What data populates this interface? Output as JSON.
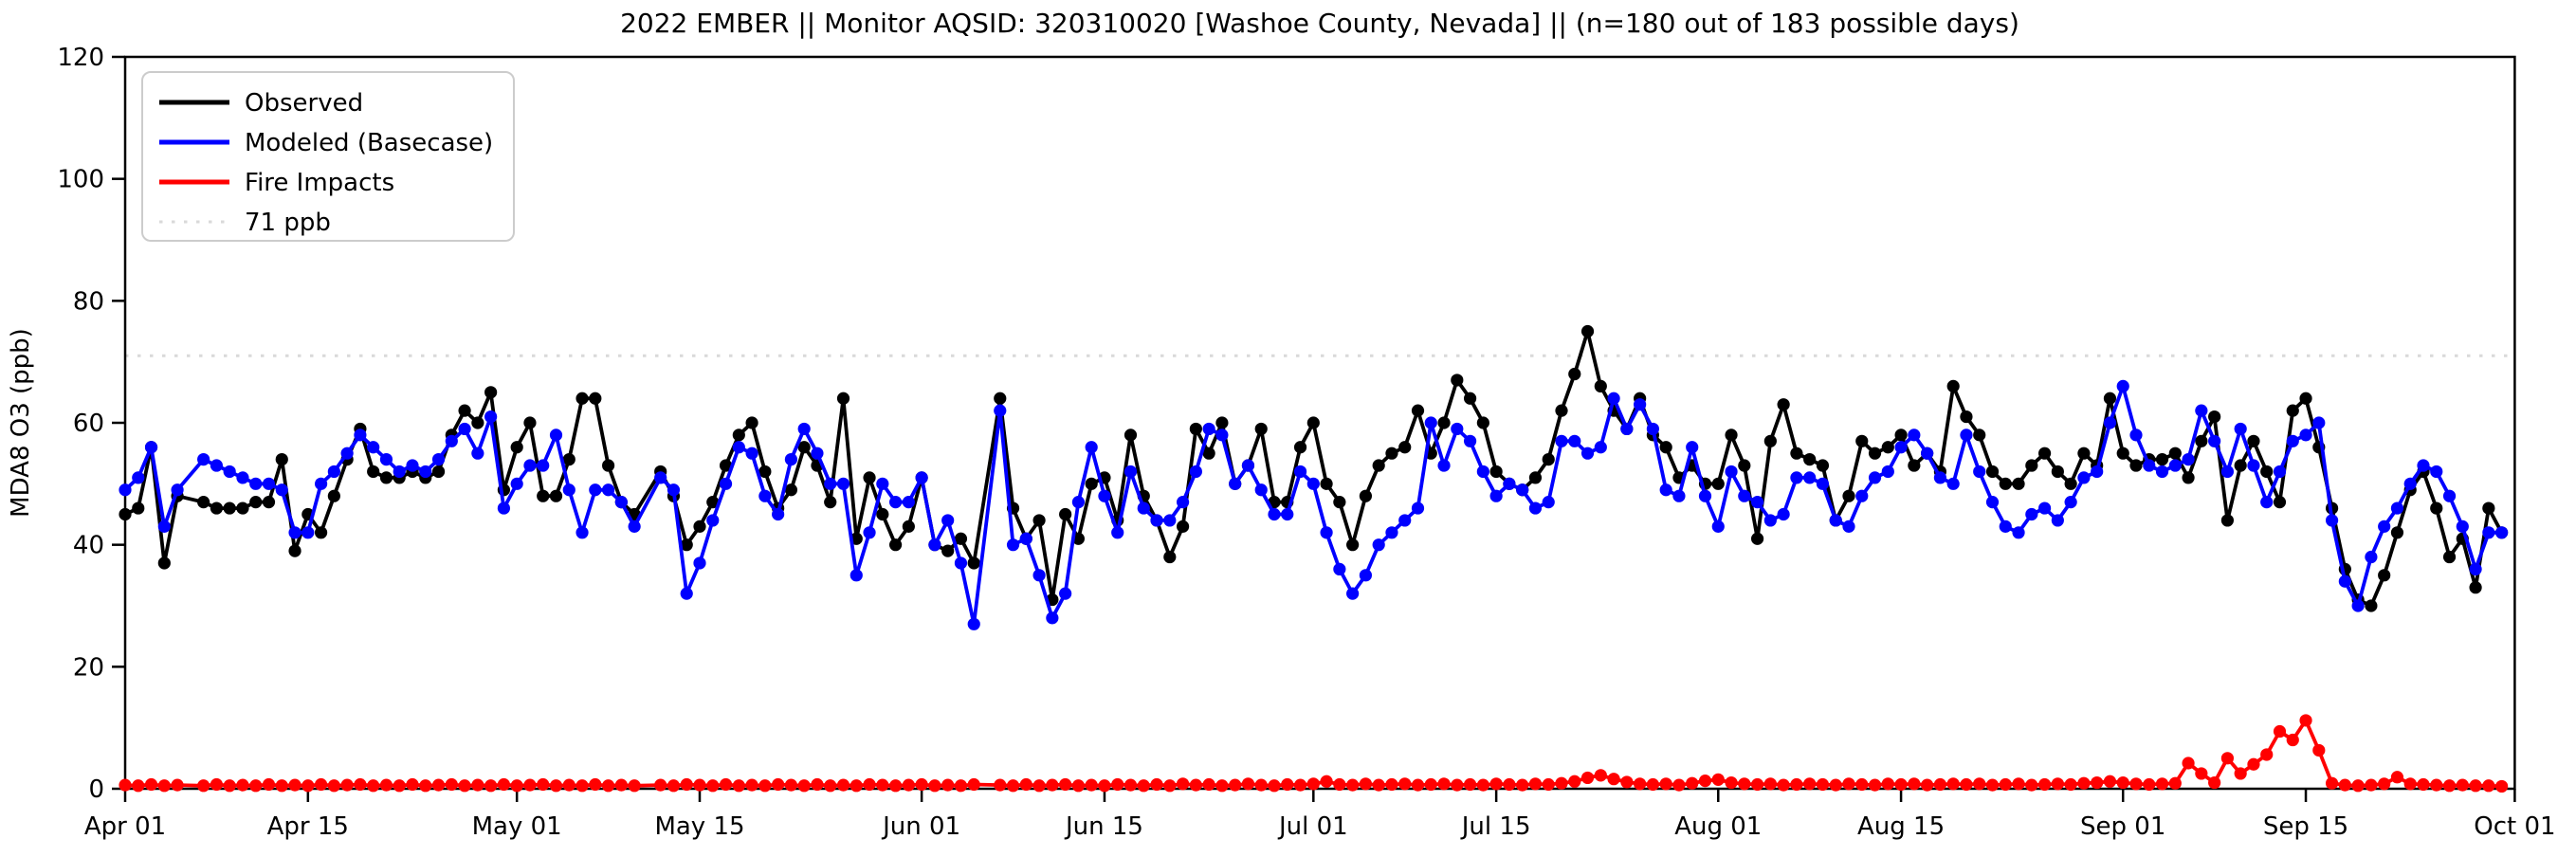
{
  "chart_data": {
    "type": "line",
    "title": "2022 EMBER || Monitor AQSID: 320310020 [Washoe County, Nevada] || (n=180 out of 183 possible days)",
    "xlabel": "",
    "ylabel": "MDA8 O3 (ppb)",
    "ylim": [
      0,
      120
    ],
    "yticks": [
      0,
      20,
      40,
      60,
      80,
      100,
      120
    ],
    "x_start": "Apr 01",
    "x_end": "Oct 01",
    "x_frequency": "daily",
    "n_days": 183,
    "n_observed_days": 180,
    "grid": "off",
    "legend_position": "upper-left",
    "xticks": [
      {
        "label": "Apr 01",
        "day": 0
      },
      {
        "label": "Apr 15",
        "day": 14
      },
      {
        "label": "May 01",
        "day": 30
      },
      {
        "label": "May 15",
        "day": 44
      },
      {
        "label": "Jun 01",
        "day": 61
      },
      {
        "label": "Jun 15",
        "day": 75
      },
      {
        "label": "Jul 01",
        "day": 91
      },
      {
        "label": "Jul 15",
        "day": 105
      },
      {
        "label": "Aug 01",
        "day": 122
      },
      {
        "label": "Aug 15",
        "day": 136
      },
      {
        "label": "Sep 01",
        "day": 153
      },
      {
        "label": "Sep 15",
        "day": 167
      },
      {
        "label": "Oct 01",
        "day": 183
      }
    ],
    "threshold": {
      "value": 71,
      "label": "71 ppb",
      "color": "#d9d9d9",
      "style": "dotted"
    },
    "series": [
      {
        "name": "Observed",
        "color": "#000000",
        "marker": "circle",
        "values": [
          45,
          46,
          56,
          37,
          48,
          null,
          47,
          46,
          46,
          46,
          47,
          47,
          54,
          39,
          45,
          42,
          48,
          54,
          59,
          52,
          51,
          51,
          52,
          51,
          52,
          58,
          62,
          60,
          65,
          49,
          56,
          60,
          48,
          48,
          54,
          64,
          64,
          53,
          47,
          45,
          null,
          52,
          48,
          40,
          43,
          47,
          53,
          58,
          60,
          52,
          46,
          49,
          56,
          53,
          47,
          64,
          41,
          51,
          45,
          40,
          43,
          51,
          40,
          39,
          41,
          37,
          null,
          64,
          46,
          41,
          44,
          31,
          45,
          41,
          50,
          51,
          44,
          58,
          48,
          44,
          38,
          43,
          59,
          55,
          60,
          50,
          53,
          59,
          47,
          47,
          56,
          60,
          50,
          47,
          40,
          48,
          53,
          55,
          56,
          62,
          55,
          60,
          67,
          64,
          60,
          52,
          50,
          49,
          51,
          54,
          62,
          68,
          75,
          66,
          62,
          59,
          64,
          58,
          56,
          51,
          53,
          50,
          50,
          58,
          53,
          41,
          57,
          63,
          55,
          54,
          53,
          44,
          48,
          57,
          55,
          56,
          58,
          53,
          55,
          52,
          66,
          61,
          58,
          52,
          50,
          50,
          53,
          55,
          52,
          50,
          55,
          53,
          64,
          55,
          53,
          54,
          54,
          55,
          51,
          57,
          61,
          44,
          53,
          57,
          52,
          47,
          62,
          64,
          56,
          46,
          36,
          31,
          30,
          35,
          42,
          49,
          52,
          46,
          38,
          41,
          33,
          46,
          42
        ]
      },
      {
        "name": "Modeled (Basecase)",
        "color": "#0000ff",
        "marker": "circle",
        "values": [
          49,
          51,
          56,
          43,
          49,
          null,
          54,
          53,
          52,
          51,
          50,
          50,
          49,
          42,
          42,
          50,
          52,
          55,
          58,
          56,
          54,
          52,
          53,
          52,
          54,
          57,
          59,
          55,
          61,
          46,
          50,
          53,
          53,
          58,
          49,
          42,
          49,
          49,
          47,
          43,
          null,
          51,
          49,
          32,
          37,
          44,
          50,
          56,
          55,
          48,
          45,
          54,
          59,
          55,
          50,
          50,
          35,
          42,
          50,
          47,
          47,
          51,
          40,
          44,
          37,
          27,
          null,
          62,
          40,
          41,
          35,
          28,
          32,
          47,
          56,
          48,
          42,
          52,
          46,
          44,
          44,
          47,
          52,
          59,
          58,
          50,
          53,
          49,
          45,
          45,
          52,
          50,
          42,
          36,
          32,
          35,
          40,
          42,
          44,
          46,
          60,
          53,
          59,
          57,
          52,
          48,
          50,
          49,
          46,
          47,
          57,
          57,
          55,
          56,
          64,
          59,
          63,
          59,
          49,
          48,
          56,
          48,
          43,
          52,
          48,
          47,
          44,
          45,
          51,
          51,
          50,
          44,
          43,
          48,
          51,
          52,
          56,
          58,
          55,
          51,
          50,
          58,
          52,
          47,
          43,
          42,
          45,
          46,
          44,
          47,
          51,
          52,
          60,
          66,
          58,
          53,
          52,
          53,
          54,
          62,
          57,
          52,
          59,
          53,
          47,
          52,
          57,
          58,
          60,
          44,
          34,
          30,
          38,
          43,
          46,
          50,
          53,
          52,
          48,
          43,
          36,
          42,
          42
        ]
      },
      {
        "name": "Fire Impacts",
        "color": "#ff0000",
        "marker": "circle",
        "values": [
          0.6,
          0.5,
          0.7,
          0.5,
          0.6,
          null,
          0.5,
          0.7,
          0.5,
          0.6,
          0.5,
          0.7,
          0.5,
          0.6,
          0.5,
          0.7,
          0.5,
          0.6,
          0.7,
          0.5,
          0.6,
          0.5,
          0.7,
          0.5,
          0.6,
          0.7,
          0.5,
          0.6,
          0.5,
          0.7,
          0.5,
          0.6,
          0.7,
          0.5,
          0.6,
          0.5,
          0.7,
          0.5,
          0.6,
          0.5,
          null,
          0.6,
          0.5,
          0.7,
          0.6,
          0.5,
          0.7,
          0.5,
          0.6,
          0.5,
          0.7,
          0.6,
          0.5,
          0.7,
          0.5,
          0.6,
          0.5,
          0.7,
          0.6,
          0.5,
          0.6,
          0.7,
          0.5,
          0.6,
          0.5,
          0.7,
          null,
          0.6,
          0.5,
          0.7,
          0.5,
          0.6,
          0.7,
          0.5,
          0.6,
          0.5,
          0.7,
          0.6,
          0.5,
          0.7,
          0.5,
          0.8,
          0.6,
          0.7,
          0.5,
          0.6,
          0.8,
          0.6,
          0.5,
          0.7,
          0.6,
          0.8,
          1.2,
          0.7,
          0.6,
          0.8,
          0.6,
          0.7,
          0.8,
          0.6,
          0.7,
          0.8,
          0.6,
          0.7,
          0.6,
          0.8,
          0.7,
          0.6,
          0.8,
          0.7,
          0.9,
          1.2,
          1.8,
          2.2,
          1.6,
          1.1,
          0.8,
          0.7,
          0.8,
          0.6,
          0.9,
          1.3,
          1.5,
          1.0,
          0.8,
          0.7,
          0.8,
          0.6,
          0.7,
          0.8,
          0.7,
          0.6,
          0.8,
          0.7,
          0.6,
          0.8,
          0.7,
          0.8,
          0.6,
          0.7,
          0.8,
          0.7,
          0.8,
          0.6,
          0.7,
          0.8,
          0.6,
          0.7,
          0.8,
          0.7,
          0.9,
          1.0,
          1.2,
          1.0,
          0.8,
          0.7,
          0.8,
          0.9,
          4.2,
          2.5,
          1.0,
          5.0,
          2.5,
          4.0,
          5.6,
          9.4,
          8.0,
          11.2,
          6.3,
          0.9,
          0.6,
          0.5,
          0.6,
          0.8,
          1.9,
          0.8,
          0.7,
          0.6,
          0.5,
          0.6,
          0.5,
          0.5,
          0.4
        ]
      }
    ]
  },
  "legend": {
    "items": [
      {
        "label": "Observed",
        "color": "#000000",
        "style": "solid"
      },
      {
        "label": "Modeled (Basecase)",
        "color": "#0000ff",
        "style": "solid"
      },
      {
        "label": "Fire Impacts",
        "color": "#ff0000",
        "style": "solid"
      },
      {
        "label": "71 ppb",
        "color": "#d9d9d9",
        "style": "dotted"
      }
    ]
  },
  "colors": {
    "background": "#ffffff",
    "frame": "#000000",
    "threshold_line": "#d9d9d9",
    "legend_border": "#cccccc"
  }
}
